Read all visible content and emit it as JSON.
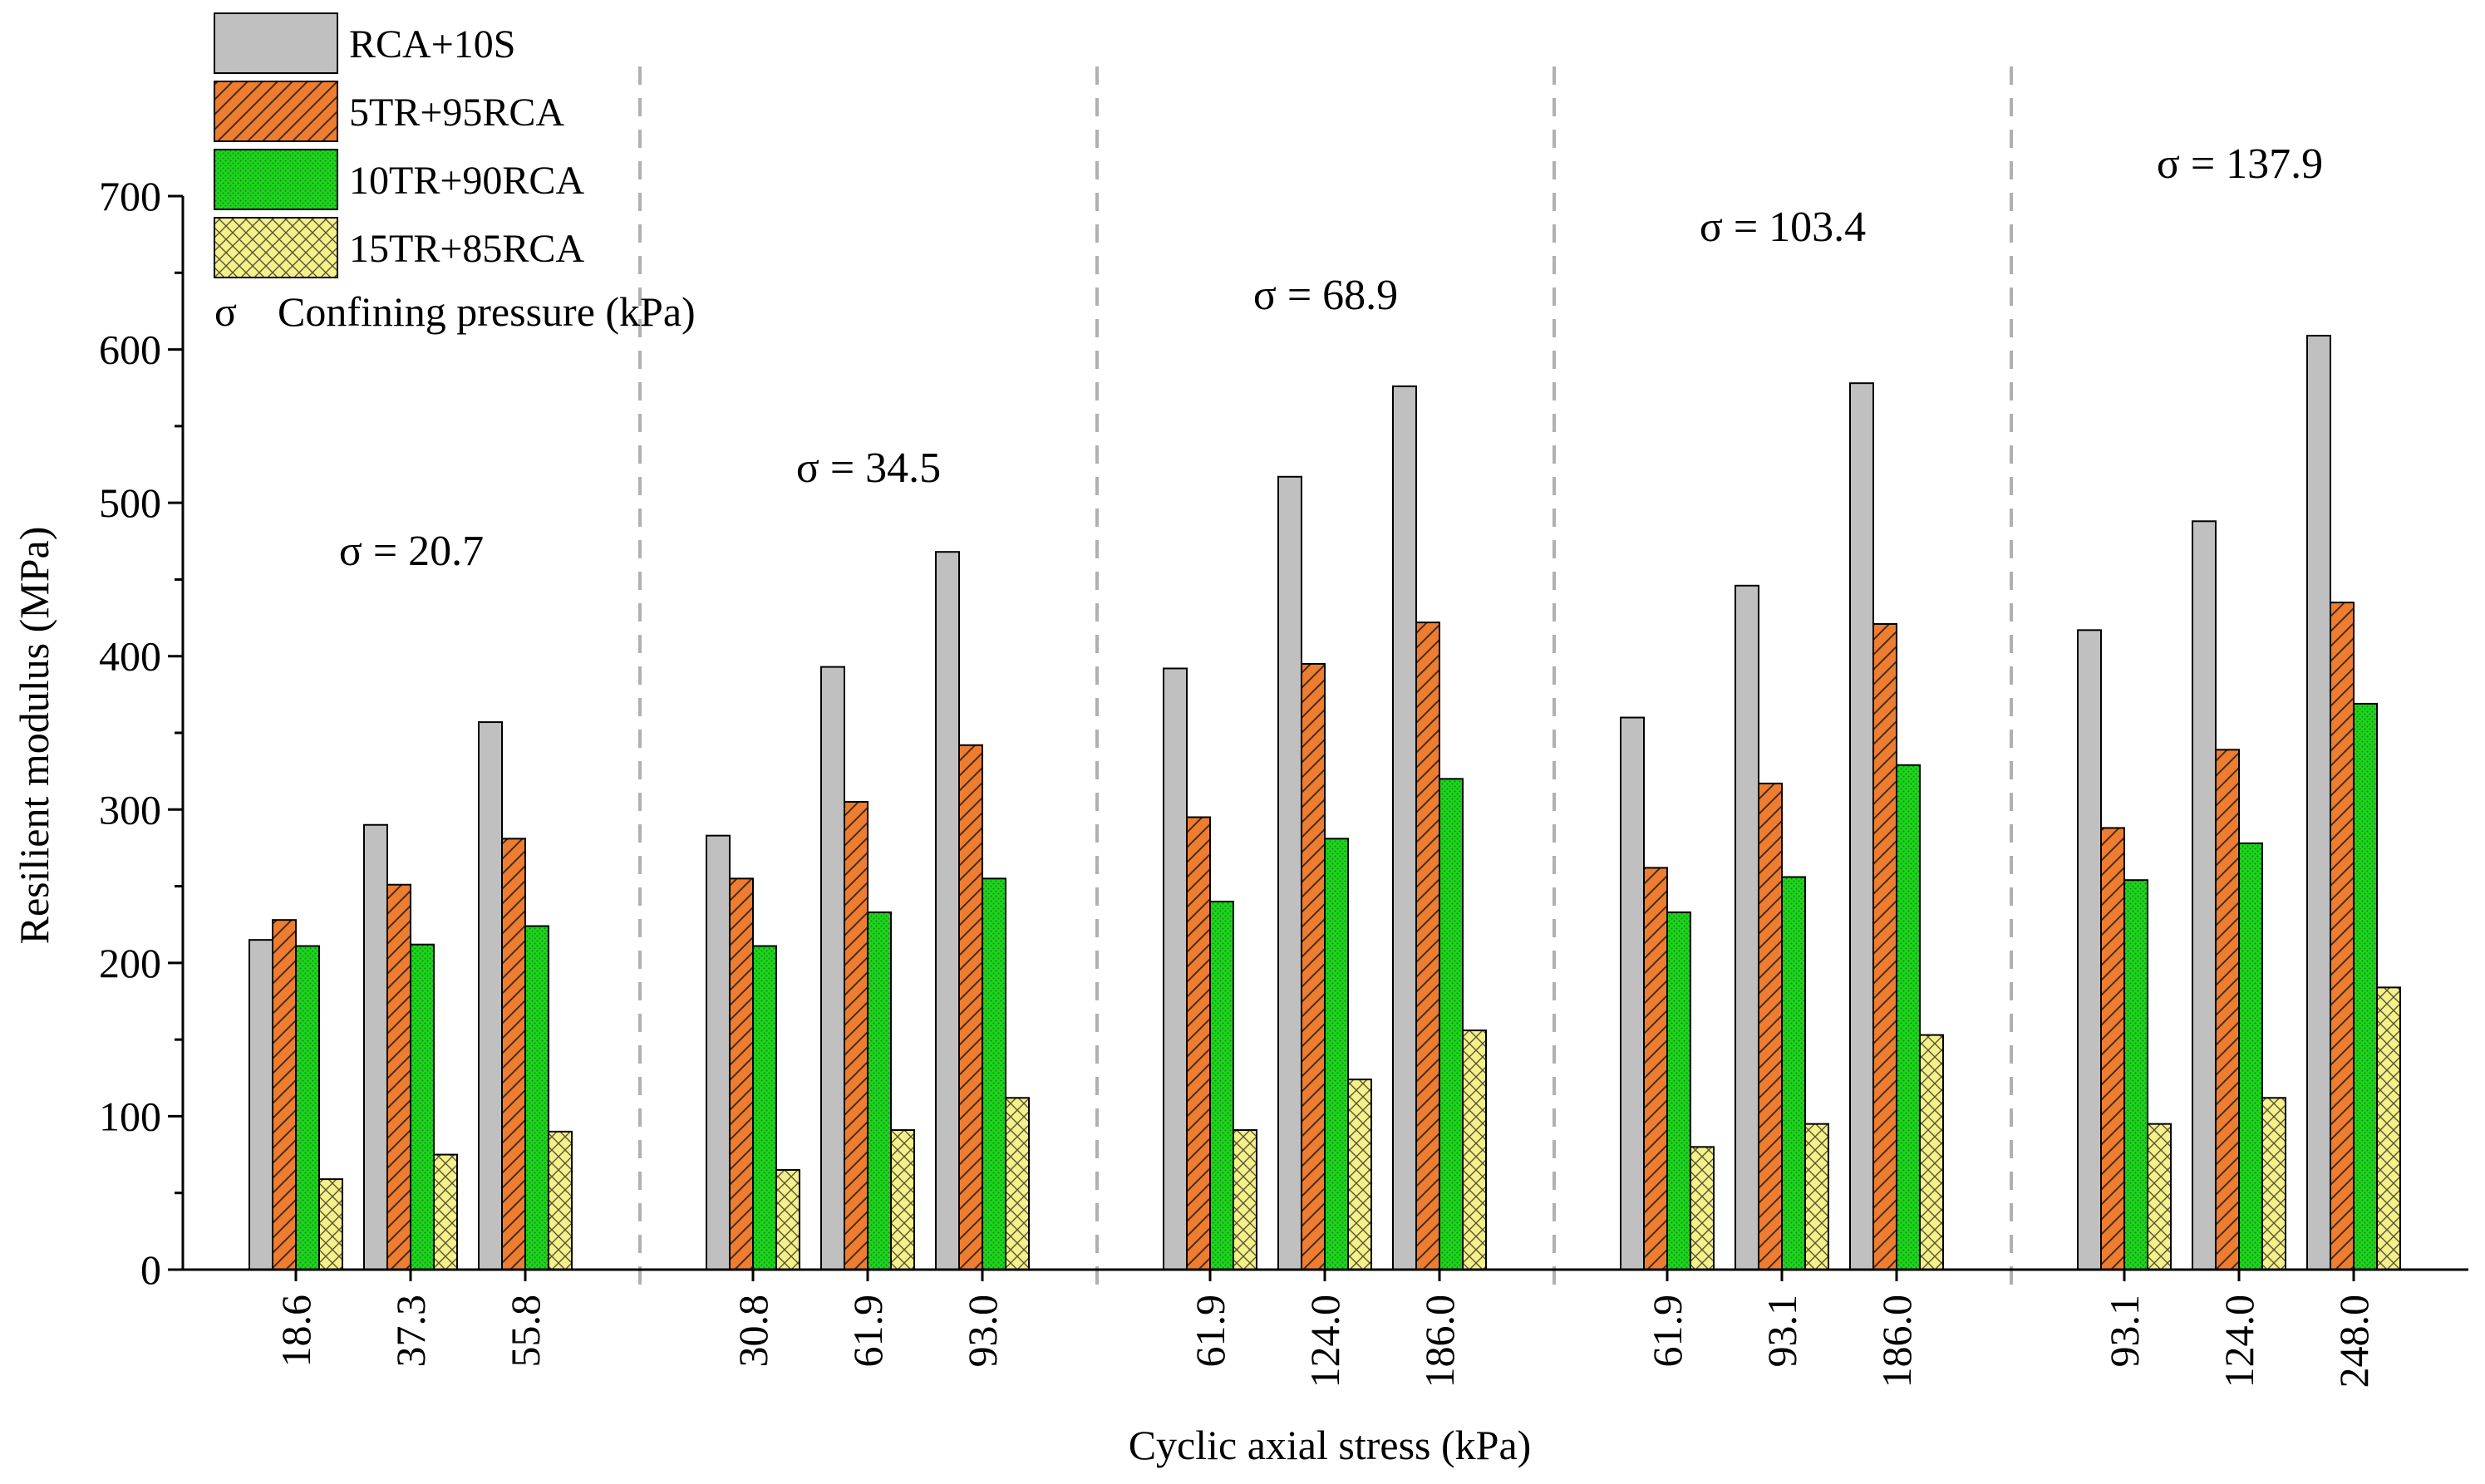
{
  "chart_data": {
    "type": "bar",
    "xlabel": "Cyclic axial stress (kPa)",
    "ylabel": "Resilient modulus (MPa)",
    "ylim": [
      0,
      700
    ],
    "yticks": [
      "0",
      "100",
      "200",
      "300",
      "400",
      "500",
      "600",
      "700"
    ],
    "grid": false,
    "legend_position": "top-left",
    "legend_note": {
      "symbol": "σ",
      "text": "Confining pressure (kPa)"
    },
    "groups": [
      {
        "label": "σ = 20.7",
        "categories": [
          "18.6",
          "37.3",
          "55.8"
        ]
      },
      {
        "label": "σ = 34.5",
        "categories": [
          "30.8",
          "61.9",
          "93.0"
        ]
      },
      {
        "label": "σ = 68.9",
        "categories": [
          "61.9",
          "124.0",
          "186.0"
        ]
      },
      {
        "label": "σ = 103.4",
        "categories": [
          "61.9",
          "93.1",
          "186.0"
        ]
      },
      {
        "label": "σ = 137.9",
        "categories": [
          "93.1",
          "124.0",
          "248.0"
        ]
      }
    ],
    "series": [
      {
        "name": "RCA+10S",
        "color": "#c0c0c0",
        "pattern": "solid",
        "values": [
          215,
          290,
          357,
          283,
          393,
          468,
          392,
          517,
          576,
          360,
          446,
          578,
          417,
          488,
          609
        ]
      },
      {
        "name": "5TR+95RCA",
        "color": "#ed7d31",
        "pattern": "diagonal",
        "values": [
          228,
          251,
          281,
          255,
          305,
          342,
          295,
          395,
          422,
          262,
          317,
          421,
          288,
          339,
          435
        ]
      },
      {
        "name": "10TR+90RCA",
        "color": "#1ed41e",
        "pattern": "dots",
        "values": [
          211,
          212,
          224,
          211,
          233,
          255,
          240,
          281,
          320,
          233,
          256,
          329,
          254,
          278,
          369
        ]
      },
      {
        "name": "15TR+85RCA",
        "color": "#f5f08a",
        "pattern": "crosshatch",
        "values": [
          59,
          75,
          90,
          65,
          91,
          112,
          91,
          124,
          156,
          80,
          95,
          153,
          95,
          112,
          184
        ]
      }
    ]
  }
}
